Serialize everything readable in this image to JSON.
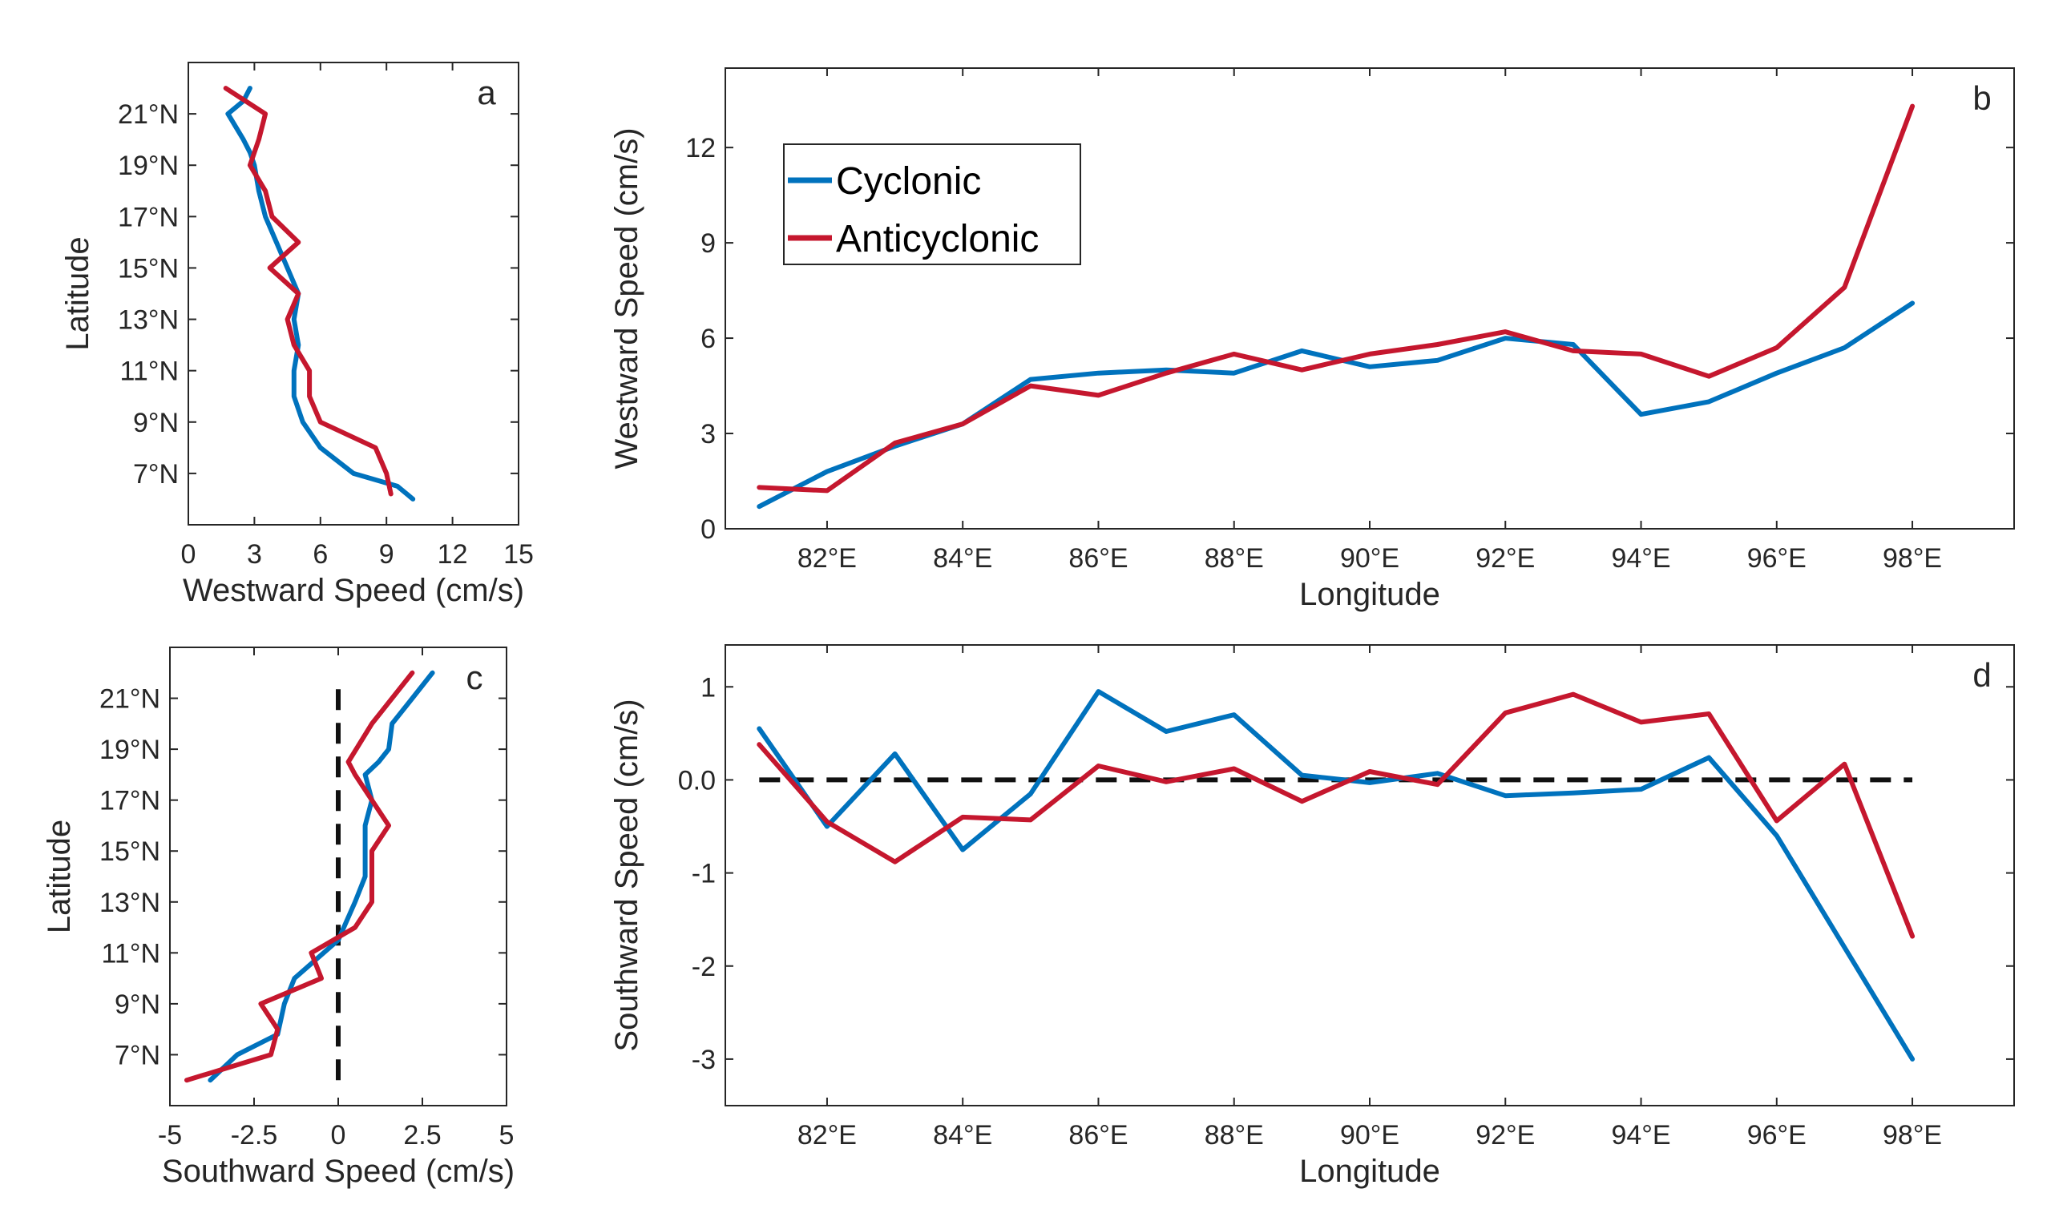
{
  "chart_data": [
    {
      "id": "a",
      "type": "line",
      "panel_label": "a",
      "xlabel": "Westward Speed (cm/s)",
      "ylabel": "Latitude",
      "xlim": [
        0,
        15
      ],
      "ylim": [
        5,
        23
      ],
      "xticks": [
        0,
        3,
        6,
        9,
        12,
        15
      ],
      "xtick_labels": [
        "0",
        "3",
        "6",
        "9",
        "12",
        "15"
      ],
      "yticks": [
        7,
        9,
        11,
        13,
        15,
        17,
        19,
        21
      ],
      "ytick_labels": [
        "7°N",
        "9°N",
        "11°N",
        "13°N",
        "15°N",
        "17°N",
        "19°N",
        "21°N"
      ],
      "series": [
        {
          "name": "Cyclonic",
          "color": "#0072BD",
          "points": [
            [
              10.2,
              6
            ],
            [
              9.5,
              6.5
            ],
            [
              7.5,
              7
            ],
            [
              6,
              8
            ],
            [
              5.2,
              9
            ],
            [
              4.8,
              10
            ],
            [
              4.8,
              11
            ],
            [
              5,
              12
            ],
            [
              4.8,
              13
            ],
            [
              5,
              14
            ],
            [
              4.5,
              15
            ],
            [
              4,
              16
            ],
            [
              3.5,
              17
            ],
            [
              3.2,
              18
            ],
            [
              3,
              19
            ],
            [
              2.8,
              19.5
            ],
            [
              2.5,
              20
            ],
            [
              1.8,
              21
            ],
            [
              2.5,
              21.5
            ],
            [
              2.8,
              22
            ]
          ]
        },
        {
          "name": "Anticyclonic",
          "color": "#C5172E",
          "points": [
            [
              9.2,
              6.2
            ],
            [
              9,
              7
            ],
            [
              8.5,
              8
            ],
            [
              6,
              9
            ],
            [
              5.5,
              10
            ],
            [
              5.5,
              11
            ],
            [
              4.8,
              12
            ],
            [
              4.5,
              13
            ],
            [
              5,
              14
            ],
            [
              3.7,
              15
            ],
            [
              5,
              16
            ],
            [
              3.8,
              17
            ],
            [
              3.5,
              18
            ],
            [
              2.8,
              19
            ],
            [
              3.2,
              20
            ],
            [
              3.5,
              21
            ],
            [
              1.7,
              22
            ]
          ]
        }
      ]
    },
    {
      "id": "b",
      "type": "line",
      "panel_label": "b",
      "xlabel": "Longitude",
      "ylabel": "Westward Speed (cm/s)",
      "xlim": [
        80.5,
        99.5
      ],
      "ylim": [
        0,
        14.5
      ],
      "xticks": [
        82,
        84,
        86,
        88,
        90,
        92,
        94,
        96,
        98
      ],
      "xtick_labels": [
        "82°E",
        "84°E",
        "86°E",
        "88°E",
        "90°E",
        "92°E",
        "94°E",
        "96°E",
        "98°E"
      ],
      "yticks": [
        0,
        3,
        6,
        9,
        12
      ],
      "ytick_labels": [
        "0",
        "3",
        "6",
        "9",
        "12"
      ],
      "x": [
        81,
        82,
        83,
        84,
        85,
        86,
        87,
        88,
        89,
        90,
        91,
        92,
        93,
        94,
        95,
        96,
        97,
        98
      ],
      "series": [
        {
          "name": "Cyclonic",
          "color": "#0072BD",
          "values": [
            0.7,
            1.8,
            2.6,
            3.3,
            4.7,
            4.9,
            5.0,
            4.9,
            5.6,
            5.1,
            5.3,
            6.0,
            5.8,
            3.6,
            4.0,
            4.9,
            5.7,
            7.1
          ]
        },
        {
          "name": "Anticyclonic",
          "color": "#C5172E",
          "values": [
            1.3,
            1.2,
            2.7,
            3.3,
            4.5,
            4.2,
            4.9,
            5.5,
            5.0,
            5.5,
            5.8,
            6.2,
            5.6,
            5.5,
            4.8,
            5.7,
            7.6,
            13.3
          ]
        }
      ],
      "legend": {
        "position": "top-left",
        "entries": [
          "Cyclonic",
          "Anticyclonic"
        ]
      }
    },
    {
      "id": "c",
      "type": "line",
      "panel_label": "c",
      "xlabel": "Southward Speed (cm/s)",
      "ylabel": "Latitude",
      "xlim": [
        -5,
        5
      ],
      "ylim": [
        5,
        23
      ],
      "xticks": [
        -5,
        -2.5,
        0,
        2.5,
        5
      ],
      "xtick_labels": [
        "-5",
        "-2.5",
        "0",
        "2.5",
        "5"
      ],
      "yticks": [
        7,
        9,
        11,
        13,
        15,
        17,
        19,
        21
      ],
      "ytick_labels": [
        "7°N",
        "9°N",
        "11°N",
        "13°N",
        "15°N",
        "17°N",
        "19°N",
        "21°N"
      ],
      "reference_line": {
        "x": 0,
        "y_range": [
          6,
          21.5
        ],
        "style": "dashed"
      },
      "series": [
        {
          "name": "Cyclonic",
          "color": "#0072BD",
          "points": [
            [
              -3.8,
              6
            ],
            [
              -3.0,
              7
            ],
            [
              -1.8,
              7.8
            ],
            [
              -1.6,
              9
            ],
            [
              -1.3,
              10
            ],
            [
              0,
              11.5
            ],
            [
              0.5,
              13
            ],
            [
              0.8,
              14
            ],
            [
              0.8,
              16
            ],
            [
              1.0,
              17
            ],
            [
              0.8,
              18
            ],
            [
              1.2,
              18.5
            ],
            [
              1.5,
              19
            ],
            [
              1.6,
              20
            ],
            [
              2.2,
              21
            ],
            [
              2.8,
              22
            ]
          ]
        },
        {
          "name": "Anticyclonic",
          "color": "#C5172E",
          "points": [
            [
              -4.5,
              6
            ],
            [
              -2.0,
              7
            ],
            [
              -1.8,
              8
            ],
            [
              -2.3,
              9
            ],
            [
              -0.5,
              10
            ],
            [
              -0.8,
              11
            ],
            [
              0.5,
              12
            ],
            [
              1.0,
              13
            ],
            [
              1.0,
              15
            ],
            [
              1.5,
              16
            ],
            [
              1.0,
              17
            ],
            [
              0.5,
              18
            ],
            [
              0.3,
              18.5
            ],
            [
              1.0,
              20
            ],
            [
              2.2,
              22
            ]
          ]
        }
      ]
    },
    {
      "id": "d",
      "type": "line",
      "panel_label": "d",
      "xlabel": "Longitude",
      "ylabel": "Southward Speed (cm/s)",
      "xlim": [
        80.5,
        99.5
      ],
      "ylim": [
        -3.5,
        1.45
      ],
      "xticks": [
        82,
        84,
        86,
        88,
        90,
        92,
        94,
        96,
        98
      ],
      "xtick_labels": [
        "82°E",
        "84°E",
        "86°E",
        "88°E",
        "90°E",
        "92°E",
        "94°E",
        "96°E",
        "98°E"
      ],
      "yticks": [
        -3,
        -2,
        -1,
        0,
        1
      ],
      "ytick_labels": [
        "-3",
        "-2",
        "-1",
        "0.0",
        "1"
      ],
      "reference_line": {
        "y": 0,
        "x_range": [
          81,
          98
        ],
        "style": "dashed"
      },
      "x": [
        81,
        82,
        83,
        84,
        85,
        86,
        87,
        88,
        89,
        90,
        91,
        92,
        93,
        94,
        95,
        96,
        97,
        98
      ],
      "series": [
        {
          "name": "Cyclonic",
          "color": "#0072BD",
          "values": [
            0.55,
            -0.5,
            0.28,
            -0.75,
            -0.15,
            0.95,
            0.52,
            0.7,
            0.05,
            -0.03,
            0.07,
            -0.17,
            -0.14,
            -0.1,
            0.24,
            -0.6,
            -1.8,
            -3.0
          ]
        },
        {
          "name": "Anticyclonic",
          "color": "#C5172E",
          "values": [
            0.38,
            -0.45,
            -0.88,
            -0.4,
            -0.43,
            0.15,
            -0.02,
            0.12,
            -0.23,
            0.09,
            -0.05,
            0.72,
            0.92,
            0.62,
            0.71,
            -0.44,
            0.17,
            -1.68
          ]
        }
      ]
    }
  ]
}
